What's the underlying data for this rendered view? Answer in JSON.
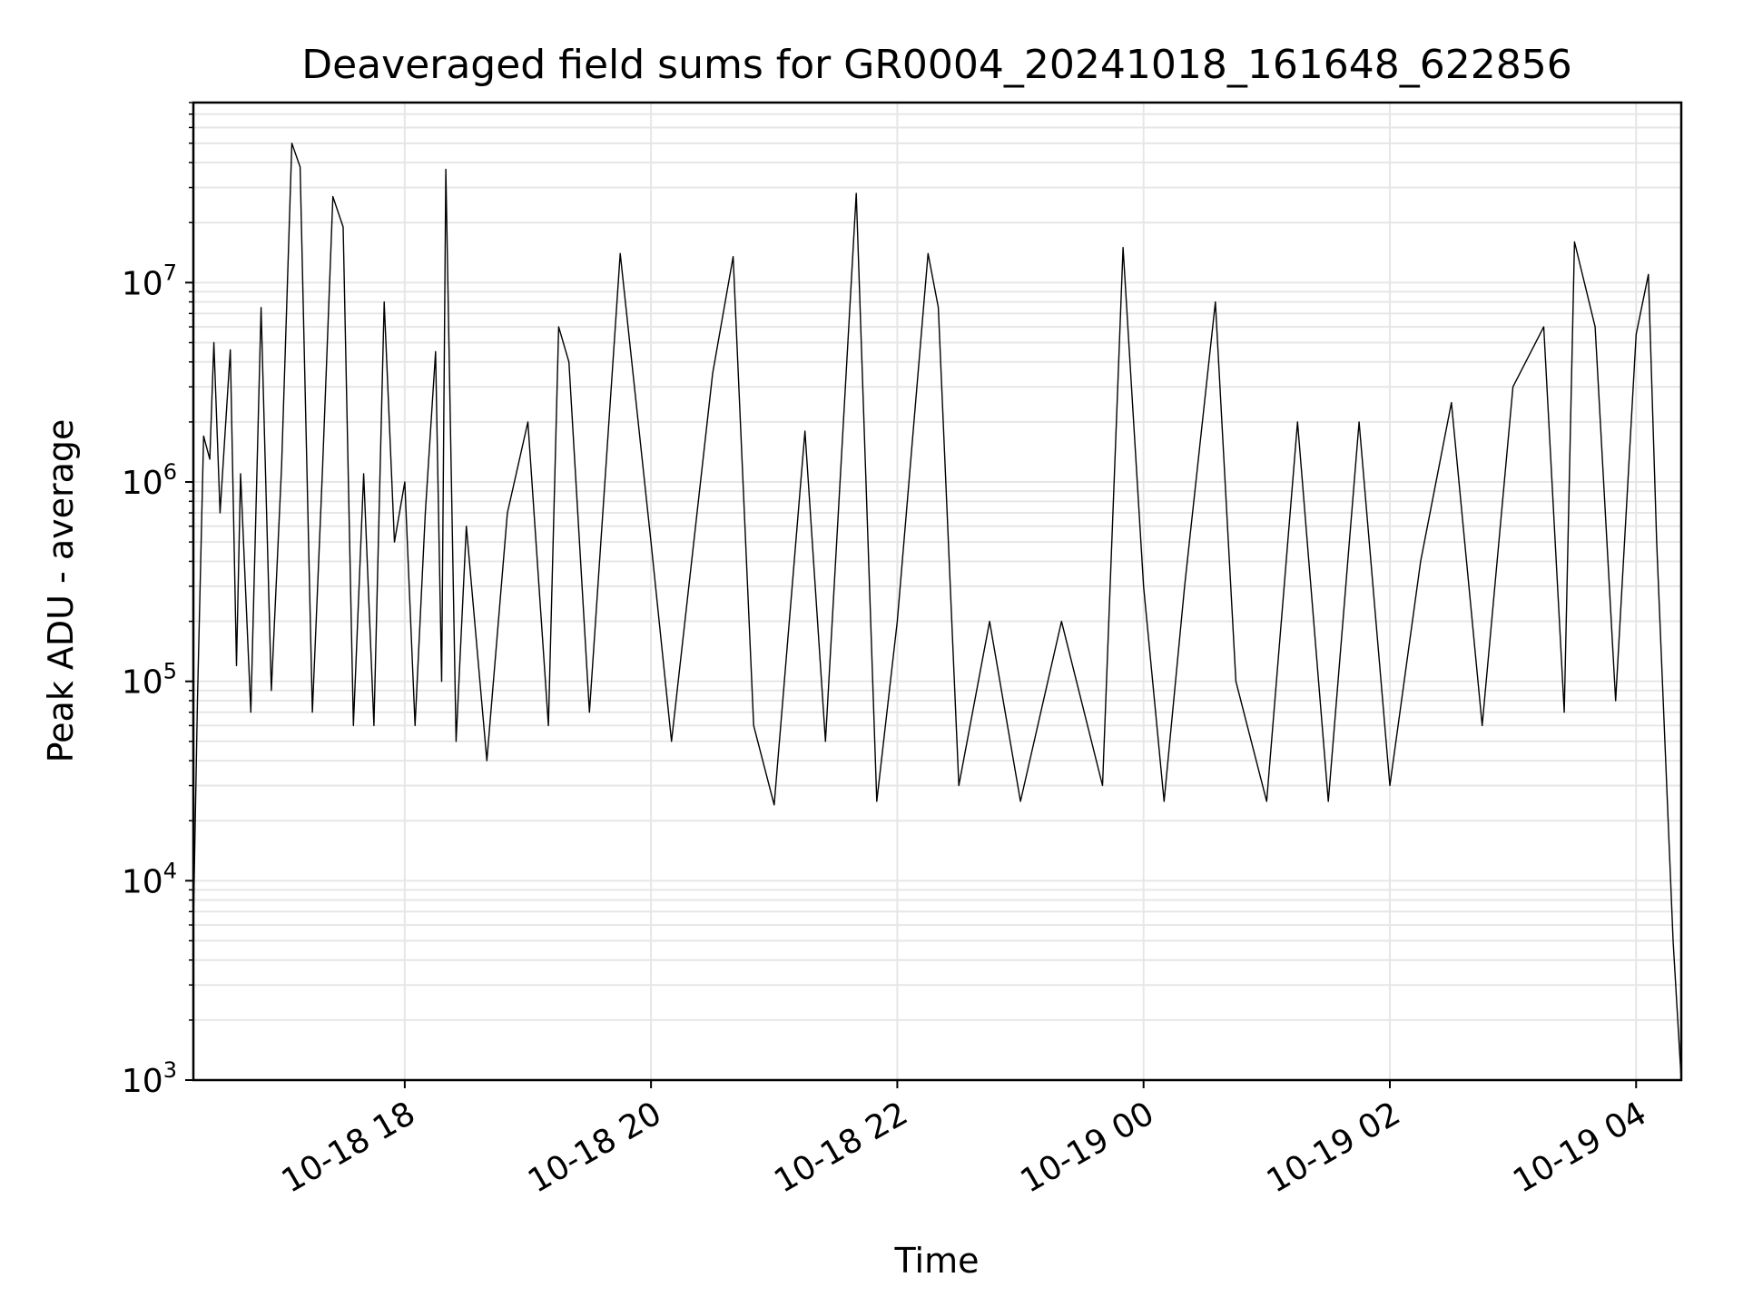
{
  "chart_data": {
    "type": "line",
    "title": "Deaveraged field sums for GR0004_20241018_161648_622856",
    "xlabel": "Time",
    "ylabel": "Peak ADU - average",
    "yscale": "log",
    "ylim": [
      1000,
      80000000
    ],
    "xlim": [
      "2024-10-18 16:17",
      "2024-10-19 04:22"
    ],
    "grid": true,
    "line_color": "#000000",
    "grid_color": "#e6e6e6",
    "x_ticks": [
      {
        "t": "2024-10-18 18:00",
        "label": "10-18 18"
      },
      {
        "t": "2024-10-18 20:00",
        "label": "10-18 20"
      },
      {
        "t": "2024-10-18 22:00",
        "label": "10-18 22"
      },
      {
        "t": "2024-10-19 00:00",
        "label": "10-19 00"
      },
      {
        "t": "2024-10-19 02:00",
        "label": "10-19 02"
      },
      {
        "t": "2024-10-19 04:00",
        "label": "10-19 04"
      }
    ],
    "y_ticks": [
      {
        "value": 1000,
        "base": "10",
        "exp": "3"
      },
      {
        "value": 10000,
        "base": "10",
        "exp": "4"
      },
      {
        "value": 100000,
        "base": "10",
        "exp": "5"
      },
      {
        "value": 1000000,
        "base": "10",
        "exp": "6"
      },
      {
        "value": 10000000,
        "base": "10",
        "exp": "7"
      }
    ],
    "series": [
      {
        "points": [
          [
            "2024-10-18 16:17",
            6000
          ],
          [
            "2024-10-18 16:19",
            80000
          ],
          [
            "2024-10-18 16:22",
            1700000
          ],
          [
            "2024-10-18 16:25",
            1300000
          ],
          [
            "2024-10-18 16:27",
            5000000
          ],
          [
            "2024-10-18 16:30",
            700000
          ],
          [
            "2024-10-18 16:35",
            4600000
          ],
          [
            "2024-10-18 16:38",
            120000
          ],
          [
            "2024-10-18 16:40",
            1100000
          ],
          [
            "2024-10-18 16:45",
            70000
          ],
          [
            "2024-10-18 16:50",
            7500000
          ],
          [
            "2024-10-18 16:55",
            90000
          ],
          [
            "2024-10-18 17:00",
            1200000
          ],
          [
            "2024-10-18 17:05",
            50000000
          ],
          [
            "2024-10-18 17:09",
            38000000
          ],
          [
            "2024-10-18 17:15",
            70000
          ],
          [
            "2024-10-18 17:20",
            1200000
          ],
          [
            "2024-10-18 17:25",
            27000000
          ],
          [
            "2024-10-18 17:30",
            19000000
          ],
          [
            "2024-10-18 17:35",
            60000
          ],
          [
            "2024-10-18 17:40",
            1100000
          ],
          [
            "2024-10-18 17:45",
            60000
          ],
          [
            "2024-10-18 17:50",
            8000000
          ],
          [
            "2024-10-18 17:55",
            500000
          ],
          [
            "2024-10-18 18:00",
            1000000
          ],
          [
            "2024-10-18 18:05",
            60000
          ],
          [
            "2024-10-18 18:10",
            700000
          ],
          [
            "2024-10-18 18:15",
            4500000
          ],
          [
            "2024-10-18 18:18",
            100000
          ],
          [
            "2024-10-18 18:20",
            37000000
          ],
          [
            "2024-10-18 18:25",
            50000
          ],
          [
            "2024-10-18 18:30",
            600000
          ],
          [
            "2024-10-18 18:40",
            40000
          ],
          [
            "2024-10-18 18:50",
            700000
          ],
          [
            "2024-10-18 19:00",
            2000000
          ],
          [
            "2024-10-18 19:10",
            60000
          ],
          [
            "2024-10-18 19:15",
            6000000
          ],
          [
            "2024-10-18 19:20",
            4000000
          ],
          [
            "2024-10-18 19:30",
            70000
          ],
          [
            "2024-10-18 19:45",
            14000000
          ],
          [
            "2024-10-18 20:00",
            500000
          ],
          [
            "2024-10-18 20:10",
            50000
          ],
          [
            "2024-10-18 20:30",
            3500000
          ],
          [
            "2024-10-18 20:40",
            13500000
          ],
          [
            "2024-10-18 20:50",
            60000
          ],
          [
            "2024-10-18 21:00",
            24000
          ],
          [
            "2024-10-18 21:15",
            1800000
          ],
          [
            "2024-10-18 21:25",
            50000
          ],
          [
            "2024-10-18 21:40",
            28000000
          ],
          [
            "2024-10-18 21:50",
            25000
          ],
          [
            "2024-10-18 22:00",
            200000
          ],
          [
            "2024-10-18 22:15",
            14000000
          ],
          [
            "2024-10-18 22:20",
            7500000
          ],
          [
            "2024-10-18 22:30",
            30000
          ],
          [
            "2024-10-18 22:45",
            200000
          ],
          [
            "2024-10-18 23:00",
            25000
          ],
          [
            "2024-10-18 23:20",
            200000
          ],
          [
            "2024-10-18 23:40",
            30000
          ],
          [
            "2024-10-18 23:50",
            15000000
          ],
          [
            "2024-10-19 00:00",
            300000
          ],
          [
            "2024-10-19 00:10",
            25000
          ],
          [
            "2024-10-19 00:20",
            300000
          ],
          [
            "2024-10-19 00:35",
            8000000
          ],
          [
            "2024-10-19 00:45",
            100000
          ],
          [
            "2024-10-19 01:00",
            25000
          ],
          [
            "2024-10-19 01:15",
            2000000
          ],
          [
            "2024-10-19 01:30",
            25000
          ],
          [
            "2024-10-19 01:45",
            2000000
          ],
          [
            "2024-10-19 02:00",
            30000
          ],
          [
            "2024-10-19 02:15",
            400000
          ],
          [
            "2024-10-19 02:30",
            2500000
          ],
          [
            "2024-10-19 02:45",
            60000
          ],
          [
            "2024-10-19 03:00",
            3000000
          ],
          [
            "2024-10-19 03:15",
            6000000
          ],
          [
            "2024-10-19 03:25",
            70000
          ],
          [
            "2024-10-19 03:30",
            16000000
          ],
          [
            "2024-10-19 03:40",
            6000000
          ],
          [
            "2024-10-19 03:50",
            80000
          ],
          [
            "2024-10-19 04:00",
            5500000
          ],
          [
            "2024-10-19 04:06",
            11000000
          ],
          [
            "2024-10-19 04:10",
            500000
          ],
          [
            "2024-10-19 04:18",
            5000
          ],
          [
            "2024-10-19 04:22",
            1000
          ]
        ]
      }
    ]
  }
}
